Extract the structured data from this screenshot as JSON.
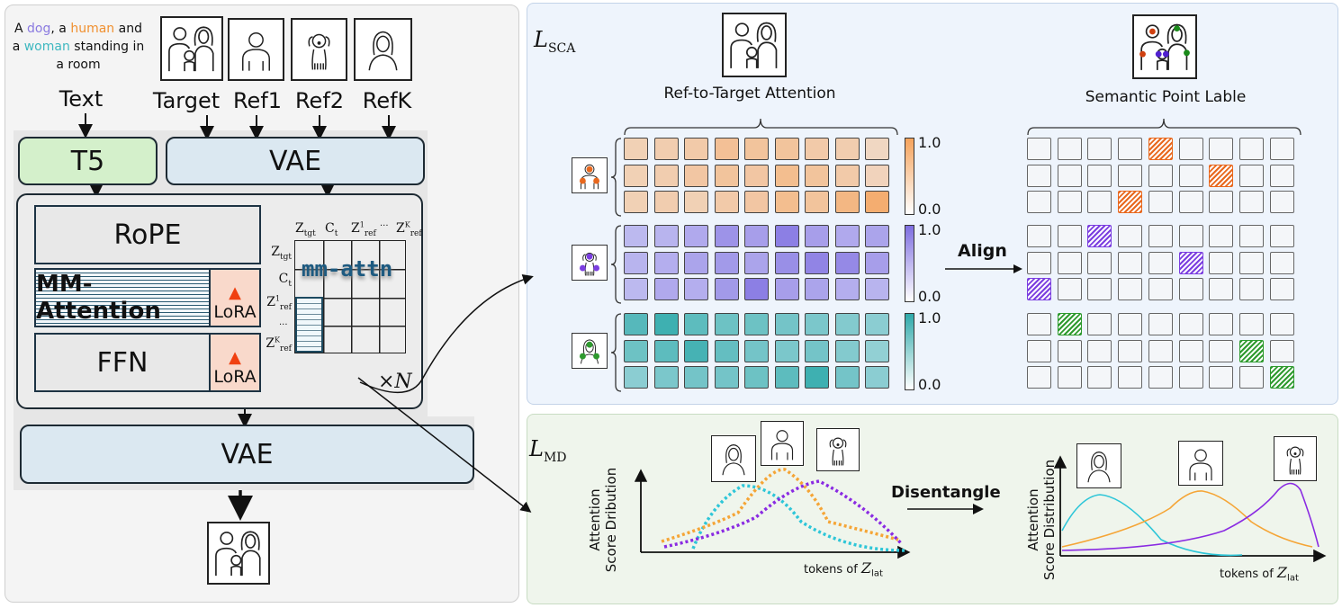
{
  "left": {
    "caption": {
      "p1": "A ",
      "dog": "dog",
      "p2": ", a ",
      "human": "human",
      "p3": " and a ",
      "woman": "woman",
      "p4": " standing in a room"
    },
    "input_labels": {
      "text": "Text",
      "target": "Target",
      "ref1": "Ref1",
      "ref2": "Ref2",
      "refk": "RefK"
    },
    "encoders": {
      "t5": "T5",
      "vae": "VAE"
    },
    "blocks": {
      "rope": "RoPE",
      "mm_attention": "MM-Attention",
      "ffn": "FFN",
      "lora": "LoRA",
      "lora_icon": "fire-icon"
    },
    "matrix": {
      "cols": [
        "Z",
        "C",
        "Z",
        "Z"
      ],
      "col_subs": [
        "tgt",
        "t",
        "ref",
        "ref"
      ],
      "col_sups": [
        "",
        "",
        "1",
        "K"
      ],
      "rows": [
        "Z",
        "C",
        "Z",
        "Z"
      ],
      "row_subs": [
        "tgt",
        "t",
        "ref",
        "ref"
      ],
      "row_sups": [
        "",
        "",
        "1",
        "K"
      ],
      "ellipsis": "···",
      "overlay": "mm-attn"
    },
    "repeat": "×N",
    "decoder": "VAE"
  },
  "sca": {
    "title": "L",
    "title_sub": "SCA",
    "attention_caption": "Ref-to-Target Attention",
    "label_caption": "Semantic Point Lable",
    "align": "Align",
    "colorbar_max": "1.0",
    "colorbar_min": "0.0",
    "colors": [
      "#f5a35c",
      "#7e6ee0",
      "#2fa9aa"
    ],
    "label_colors": [
      "#e8681e",
      "#7b3ee0",
      "#2e9a2e"
    ],
    "attention": [
      [
        [
          0.3,
          0.35,
          0.4,
          0.55,
          0.5,
          0.5,
          0.4,
          0.35,
          0.2
        ],
        [
          0.3,
          0.35,
          0.45,
          0.5,
          0.45,
          0.6,
          0.5,
          0.4,
          0.25
        ],
        [
          0.3,
          0.35,
          0.3,
          0.4,
          0.45,
          0.6,
          0.5,
          0.7,
          0.85
        ]
      ],
      [
        [
          0.3,
          0.35,
          0.45,
          0.65,
          0.55,
          0.85,
          0.55,
          0.45,
          0.5
        ],
        [
          0.35,
          0.4,
          0.5,
          0.6,
          0.5,
          0.7,
          0.8,
          0.75,
          0.55
        ],
        [
          0.3,
          0.45,
          0.4,
          0.6,
          0.85,
          0.55,
          0.5,
          0.4,
          0.35
        ]
      ],
      [
        [
          0.75,
          0.9,
          0.7,
          0.6,
          0.6,
          0.55,
          0.5,
          0.45,
          0.4
        ],
        [
          0.6,
          0.7,
          0.85,
          0.65,
          0.55,
          0.5,
          0.55,
          0.45,
          0.35
        ],
        [
          0.4,
          0.5,
          0.55,
          0.55,
          0.6,
          0.7,
          0.9,
          0.55,
          0.4
        ]
      ]
    ],
    "labels": [
      [
        0,
        4,
        0
      ],
      [
        1,
        6,
        0
      ],
      [
        2,
        3,
        0
      ],
      [
        3,
        2,
        1
      ],
      [
        4,
        5,
        1
      ],
      [
        5,
        0,
        1
      ],
      [
        6,
        1,
        2
      ],
      [
        7,
        7,
        2
      ],
      [
        8,
        8,
        2
      ]
    ]
  },
  "md": {
    "title": "L",
    "title_sub": "MD",
    "ylabel_1": "Attention",
    "ylabel_2_left": "Score Dribution",
    "ylabel_2_right": "Score Distribution",
    "xlabel": "tokens of ",
    "xlabel_var": "Z",
    "xlabel_sub": "lat",
    "disentangle": "Disentangle",
    "series_colors": {
      "woman": "#2ec6d8",
      "human": "#f5a536",
      "dog": "#8a2be2"
    }
  }
}
